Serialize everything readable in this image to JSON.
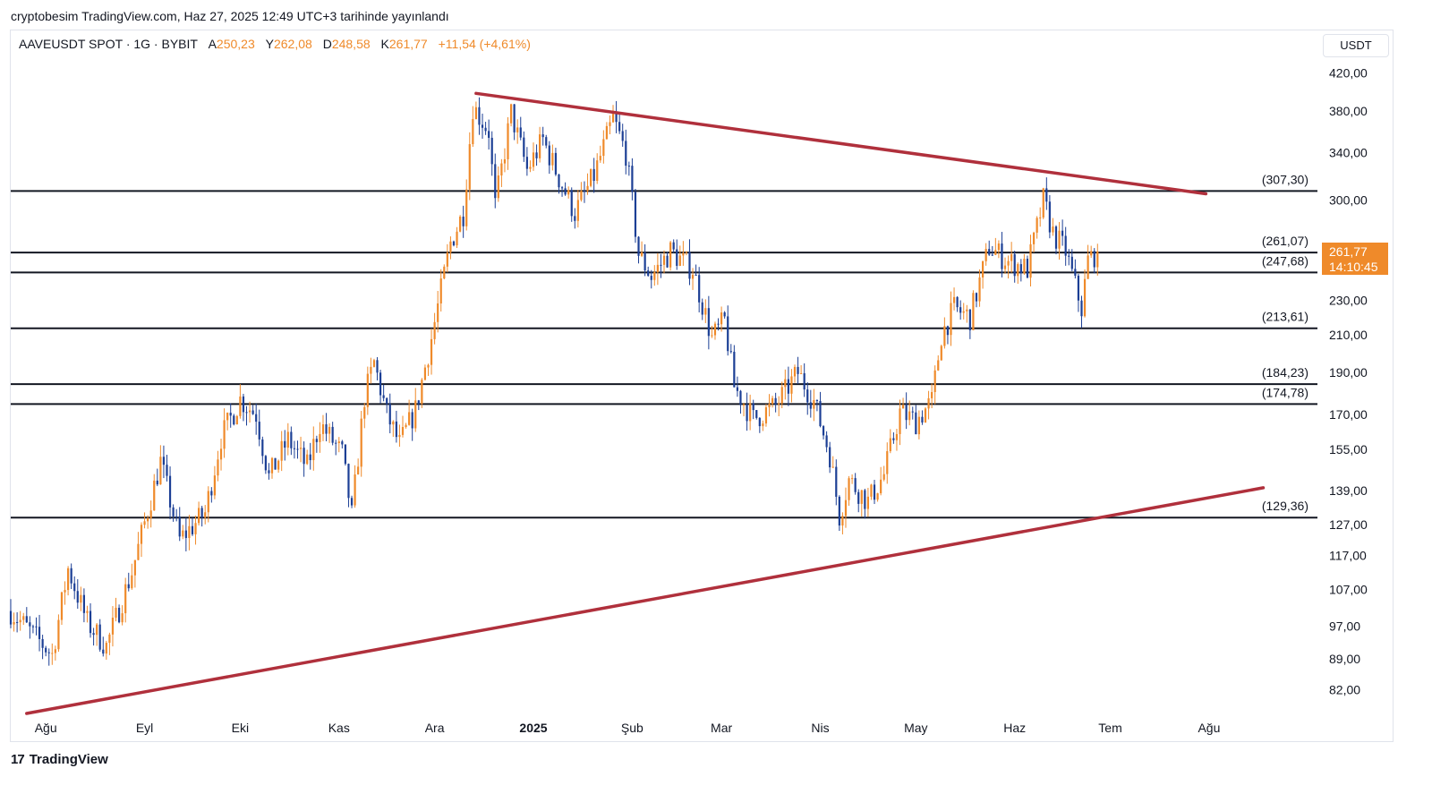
{
  "header": {
    "published": "cryptobesim TradingView.com, Haz 27, 2025 12:49 UTC+3 tarihinde yayınlandı"
  },
  "legend": {
    "symbol": "AAVEUSDT SPOT · 1G · BYBIT",
    "open_label": "A",
    "open": "250,23",
    "high_label": "Y",
    "high": "262,08",
    "low_label": "D",
    "low": "248,58",
    "close_label": "K",
    "close": "261,77",
    "change": "+11,54 (+4,61%)"
  },
  "price_axis_unit": "USDT",
  "current_price": {
    "value": "261,77",
    "countdown": "14:10:45",
    "color": "#ef8a2a"
  },
  "branding": {
    "logo": "17",
    "name": "TradingView"
  },
  "chart_data": {
    "type": "candlestick",
    "scale": "log",
    "colors": {
      "up": "#ef8a2a",
      "down": "#1c3f95",
      "trendline": "#b0303c",
      "level": "#131722"
    },
    "y_ticks": [
      {
        "value": 420,
        "label": "420,00"
      },
      {
        "value": 380,
        "label": "380,00"
      },
      {
        "value": 340,
        "label": "340,00"
      },
      {
        "value": 300,
        "label": "300,00"
      },
      {
        "value": 230,
        "label": "230,00"
      },
      {
        "value": 210,
        "label": "210,00"
      },
      {
        "value": 190,
        "label": "190,00"
      },
      {
        "value": 170,
        "label": "170,00"
      },
      {
        "value": 155,
        "label": "155,00"
      },
      {
        "value": 139,
        "label": "139,00"
      },
      {
        "value": 127,
        "label": "127,00"
      },
      {
        "value": 117,
        "label": "117,00"
      },
      {
        "value": 107,
        "label": "107,00"
      },
      {
        "value": 97,
        "label": "97,00"
      },
      {
        "value": 89,
        "label": "89,00"
      },
      {
        "value": 82,
        "label": "82,00"
      }
    ],
    "x_ticks": [
      {
        "date": "2024-08-01",
        "label": "Ağu"
      },
      {
        "date": "2024-09-01",
        "label": "Eyl"
      },
      {
        "date": "2024-10-01",
        "label": "Eki"
      },
      {
        "date": "2024-11-01",
        "label": "Kas"
      },
      {
        "date": "2024-12-01",
        "label": "Ara"
      },
      {
        "date": "2025-01-01",
        "label": "2025"
      },
      {
        "date": "2025-02-01",
        "label": "Şub"
      },
      {
        "date": "2025-03-01",
        "label": "Mar"
      },
      {
        "date": "2025-04-01",
        "label": "Nis"
      },
      {
        "date": "2025-05-01",
        "label": "May"
      },
      {
        "date": "2025-06-01",
        "label": "Haz"
      },
      {
        "date": "2025-07-01",
        "label": "Tem"
      },
      {
        "date": "2025-08-01",
        "label": "Ağu"
      }
    ],
    "x_range": [
      "2024-07-21",
      "2025-09-04"
    ],
    "y_range": [
      77,
      440
    ],
    "horizontal_levels": [
      {
        "value": 307.3,
        "label": "(307,30)"
      },
      {
        "value": 261.07,
        "label": "(261,07)"
      },
      {
        "value": 247.68,
        "label": "(247,68)"
      },
      {
        "value": 213.61,
        "label": "(213,61)"
      },
      {
        "value": 184.23,
        "label": "(184,23)"
      },
      {
        "value": 174.78,
        "label": "(174,78)"
      },
      {
        "value": 129.36,
        "label": "(129,36)"
      }
    ],
    "trendlines": [
      {
        "name": "resistance",
        "from": {
          "date": "2024-12-14",
          "price": 398
        },
        "to": {
          "date": "2025-07-31",
          "price": 305
        }
      },
      {
        "name": "support",
        "from": {
          "date": "2024-07-26",
          "price": 77
        },
        "to": {
          "date": "2025-08-18",
          "price": 140
        }
      }
    ],
    "price_path": [
      {
        "date": "2024-07-21",
        "price": 101
      },
      {
        "date": "2024-08-03",
        "price": 90
      },
      {
        "date": "2024-08-08",
        "price": 113
      },
      {
        "date": "2024-08-14",
        "price": 98
      },
      {
        "date": "2024-08-20",
        "price": 92
      },
      {
        "date": "2024-08-28",
        "price": 112
      },
      {
        "date": "2024-09-06",
        "price": 150
      },
      {
        "date": "2024-09-12",
        "price": 122
      },
      {
        "date": "2024-09-20",
        "price": 131
      },
      {
        "date": "2024-09-25",
        "price": 160
      },
      {
        "date": "2024-10-01",
        "price": 177
      },
      {
        "date": "2024-10-06",
        "price": 170
      },
      {
        "date": "2024-10-10",
        "price": 144
      },
      {
        "date": "2024-10-16",
        "price": 159
      },
      {
        "date": "2024-10-22",
        "price": 148
      },
      {
        "date": "2024-10-26",
        "price": 166
      },
      {
        "date": "2024-11-02",
        "price": 153
      },
      {
        "date": "2024-11-05",
        "price": 130
      },
      {
        "date": "2024-11-09",
        "price": 178
      },
      {
        "date": "2024-11-12",
        "price": 195
      },
      {
        "date": "2024-11-16",
        "price": 170
      },
      {
        "date": "2024-11-20",
        "price": 157
      },
      {
        "date": "2024-11-25",
        "price": 172
      },
      {
        "date": "2024-11-30",
        "price": 208
      },
      {
        "date": "2024-12-06",
        "price": 268
      },
      {
        "date": "2024-12-10",
        "price": 290
      },
      {
        "date": "2024-12-13",
        "price": 385
      },
      {
        "date": "2024-12-18",
        "price": 360
      },
      {
        "date": "2024-12-20",
        "price": 295
      },
      {
        "date": "2024-12-25",
        "price": 378
      },
      {
        "date": "2024-12-30",
        "price": 325
      },
      {
        "date": "2025-01-04",
        "price": 352
      },
      {
        "date": "2025-01-09",
        "price": 318
      },
      {
        "date": "2025-01-14",
        "price": 290
      },
      {
        "date": "2025-01-20",
        "price": 320
      },
      {
        "date": "2025-01-26",
        "price": 372
      },
      {
        "date": "2025-01-30",
        "price": 340
      },
      {
        "date": "2025-02-03",
        "price": 260
      },
      {
        "date": "2025-02-07",
        "price": 245
      },
      {
        "date": "2025-02-13",
        "price": 262
      },
      {
        "date": "2025-02-20",
        "price": 250
      },
      {
        "date": "2025-02-26",
        "price": 208
      },
      {
        "date": "2025-03-02",
        "price": 218
      },
      {
        "date": "2025-03-05",
        "price": 183
      },
      {
        "date": "2025-03-11",
        "price": 168
      },
      {
        "date": "2025-03-18",
        "price": 174
      },
      {
        "date": "2025-03-25",
        "price": 190
      },
      {
        "date": "2025-03-30",
        "price": 176
      },
      {
        "date": "2025-04-04",
        "price": 153
      },
      {
        "date": "2025-04-07",
        "price": 130
      },
      {
        "date": "2025-04-10",
        "price": 143
      },
      {
        "date": "2025-04-16",
        "price": 135
      },
      {
        "date": "2025-04-21",
        "price": 145
      },
      {
        "date": "2025-04-26",
        "price": 171
      },
      {
        "date": "2025-05-01",
        "price": 167
      },
      {
        "date": "2025-05-06",
        "price": 176
      },
      {
        "date": "2025-05-09",
        "price": 210
      },
      {
        "date": "2025-05-13",
        "price": 225
      },
      {
        "date": "2025-05-18",
        "price": 220
      },
      {
        "date": "2025-05-24",
        "price": 265
      },
      {
        "date": "2025-05-30",
        "price": 255
      },
      {
        "date": "2025-06-05",
        "price": 250
      },
      {
        "date": "2025-06-10",
        "price": 300
      },
      {
        "date": "2025-06-13",
        "price": 275
      },
      {
        "date": "2025-06-17",
        "price": 262
      },
      {
        "date": "2025-06-22",
        "price": 225
      },
      {
        "date": "2025-06-24",
        "price": 256
      },
      {
        "date": "2025-06-27",
        "price": 261.77
      }
    ]
  }
}
